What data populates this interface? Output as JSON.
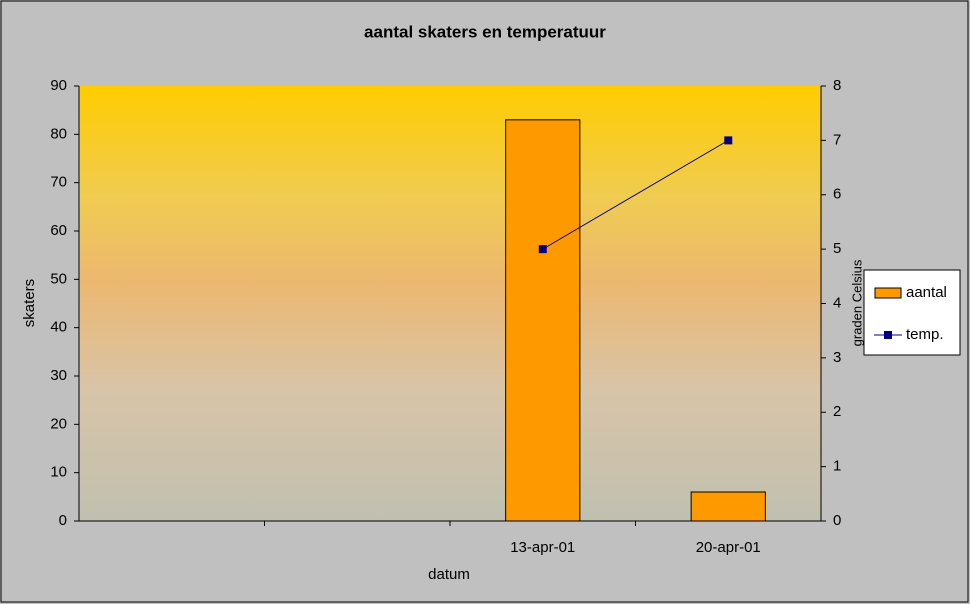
{
  "chart_data": {
    "type": "bar-line",
    "title": "aantal skaters en temperatuur",
    "x_label": "datum",
    "y_label": "skaters",
    "y2_label": "graden Celsius",
    "categories": [
      null,
      null,
      "13-apr-01",
      "20-apr-01"
    ],
    "series": [
      {
        "name": "aantal",
        "type": "bar",
        "color": "#ff9900",
        "values": [
          null,
          null,
          83,
          6
        ]
      },
      {
        "name": "temp.",
        "type": "line",
        "color": "#000080",
        "axis": "y2",
        "values": [
          null,
          null,
          5,
          7
        ]
      }
    ],
    "ylim": [
      0,
      90
    ],
    "yticks": [
      0,
      10,
      20,
      30,
      40,
      50,
      60,
      70,
      80,
      90
    ],
    "y2lim": [
      0,
      8
    ],
    "y2ticks": [
      0,
      1,
      2,
      3,
      4,
      5,
      6,
      7,
      8
    ],
    "legend": "right"
  }
}
